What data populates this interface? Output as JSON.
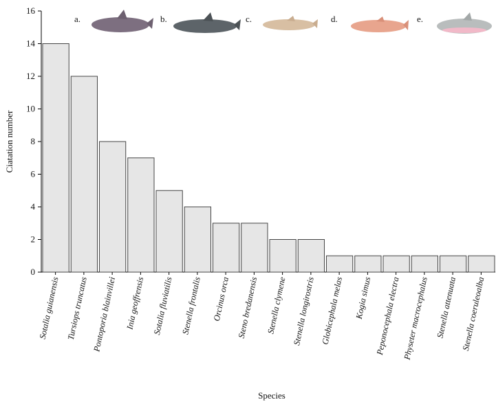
{
  "chart_data": {
    "type": "bar",
    "x_label": "Species",
    "y_label": "Ciatation number",
    "categories": [
      "Sotalia guianensis",
      "Tursiops truncatus",
      "Pontoporia blainvillei",
      "Inia geoffrensis",
      "Sotalia fluviatilis",
      "Stenella frontalis",
      "Orcinus orca",
      "Steno bredanensis",
      "Stenella clymene",
      "Stenella longirostris",
      "Globicephala melas",
      "Kogia simus",
      "Peponocephala electra",
      "Physeter macrocephalus",
      "Stenella attenuata",
      "Stenella coeruleoalba"
    ],
    "values": [
      14,
      12,
      8,
      7,
      5,
      4,
      3,
      3,
      2,
      2,
      1,
      1,
      1,
      1,
      1,
      1
    ],
    "color": "#e6e6e6",
    "ylim": [
      0,
      16
    ],
    "yticks": [
      0,
      2,
      4,
      6,
      8,
      10,
      12,
      14,
      16
    ],
    "annotations": [
      "a.",
      "b.",
      "c.",
      "d.",
      "e."
    ]
  }
}
